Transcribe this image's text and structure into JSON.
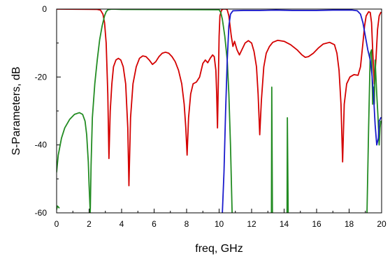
{
  "chart_data": {
    "type": "line",
    "xlabel": "freq, GHz",
    "ylabel": "S-Parameters, dB",
    "xlim": [
      0,
      20
    ],
    "ylim": [
      -60,
      0
    ],
    "x_ticks": [
      0,
      2,
      4,
      6,
      8,
      10,
      12,
      14,
      16,
      18,
      20
    ],
    "y_ticks": [
      0,
      -20,
      -40,
      -60
    ],
    "x_tick_labels": [
      "0",
      "2",
      "4",
      "6",
      "8",
      "10",
      "12",
      "14",
      "16",
      "18",
      "20"
    ],
    "y_tick_labels": [
      "0",
      "-20",
      "-40",
      "-60"
    ],
    "grid": false,
    "series": [
      {
        "color": "#d40000",
        "segments": [
          [
            [
              0,
              0
            ],
            [
              2.5,
              -0.1
            ],
            [
              2.7,
              -0.3
            ],
            [
              2.85,
              -1.5
            ],
            [
              2.95,
              -4
            ],
            [
              3.05,
              -10
            ],
            [
              3.15,
              -25
            ],
            [
              3.22,
              -44
            ],
            [
              3.3,
              -30
            ],
            [
              3.4,
              -22
            ],
            [
              3.5,
              -17
            ],
            [
              3.65,
              -15
            ],
            [
              3.8,
              -14.5
            ],
            [
              3.95,
              -15
            ],
            [
              4.1,
              -17
            ],
            [
              4.25,
              -22
            ],
            [
              4.38,
              -35
            ],
            [
              4.45,
              -52
            ],
            [
              4.55,
              -32
            ],
            [
              4.7,
              -22
            ],
            [
              4.9,
              -17
            ],
            [
              5.1,
              -14.5
            ],
            [
              5.3,
              -13.8
            ],
            [
              5.5,
              -14
            ],
            [
              5.7,
              -15
            ],
            [
              5.9,
              -16.3
            ],
            [
              6.1,
              -15.5
            ],
            [
              6.3,
              -14
            ],
            [
              6.5,
              -13
            ],
            [
              6.7,
              -12.7
            ],
            [
              6.9,
              -13
            ],
            [
              7.1,
              -14
            ],
            [
              7.3,
              -15.5
            ],
            [
              7.5,
              -18
            ],
            [
              7.7,
              -22
            ],
            [
              7.85,
              -28
            ],
            [
              7.95,
              -35
            ],
            [
              8.03,
              -43
            ],
            [
              8.12,
              -32
            ],
            [
              8.25,
              -25
            ],
            [
              8.4,
              -22
            ],
            [
              8.6,
              -21.5
            ],
            [
              8.8,
              -20
            ],
            [
              9.0,
              -16
            ],
            [
              9.15,
              -15
            ],
            [
              9.3,
              -15.8
            ],
            [
              9.45,
              -14.5
            ],
            [
              9.6,
              -13.5
            ],
            [
              9.7,
              -14
            ],
            [
              9.8,
              -18
            ],
            [
              9.85,
              -25
            ],
            [
              9.9,
              -35
            ],
            [
              9.95,
              -22
            ],
            [
              10.0,
              -8
            ],
            [
              10.05,
              -2
            ],
            [
              10.15,
              -0.3
            ],
            [
              10.25,
              0
            ],
            [
              10.4,
              0
            ],
            [
              10.5,
              -0.2
            ],
            [
              10.6,
              -2
            ],
            [
              10.75,
              -8
            ],
            [
              10.85,
              -11
            ],
            [
              10.95,
              -9.5
            ],
            [
              11.1,
              -12
            ],
            [
              11.25,
              -13.5
            ],
            [
              11.4,
              -12
            ],
            [
              11.6,
              -10
            ],
            [
              11.8,
              -9.3
            ],
            [
              12.0,
              -10
            ],
            [
              12.15,
              -12.5
            ],
            [
              12.3,
              -17
            ],
            [
              12.4,
              -25
            ],
            [
              12.5,
              -37
            ],
            [
              12.6,
              -27
            ],
            [
              12.75,
              -17
            ],
            [
              12.9,
              -13
            ],
            [
              13.1,
              -11
            ],
            [
              13.3,
              -9.8
            ],
            [
              13.6,
              -9.2
            ],
            [
              14.0,
              -9.5
            ],
            [
              14.4,
              -10.5
            ],
            [
              14.8,
              -12
            ],
            [
              15.1,
              -13.5
            ],
            [
              15.3,
              -14.2
            ],
            [
              15.5,
              -14
            ],
            [
              15.8,
              -13
            ],
            [
              16.1,
              -11.5
            ],
            [
              16.4,
              -10.3
            ],
            [
              16.8,
              -9.8
            ],
            [
              17.1,
              -10.5
            ],
            [
              17.25,
              -13
            ],
            [
              17.38,
              -18
            ],
            [
              17.5,
              -28
            ],
            [
              17.6,
              -45
            ],
            [
              17.7,
              -28
            ],
            [
              17.85,
              -22
            ],
            [
              18.05,
              -20
            ],
            [
              18.3,
              -19.3
            ],
            [
              18.55,
              -19.5
            ],
            [
              18.7,
              -17
            ],
            [
              18.85,
              -10
            ],
            [
              18.95,
              -5
            ],
            [
              19.05,
              -2
            ],
            [
              19.2,
              -0.8
            ],
            [
              19.3,
              -1
            ],
            [
              19.38,
              -4
            ],
            [
              19.45,
              -12
            ],
            [
              19.55,
              -22
            ],
            [
              19.65,
              -15
            ],
            [
              19.75,
              -6
            ],
            [
              19.85,
              -2
            ],
            [
              19.95,
              -1
            ]
          ]
        ]
      },
      {
        "color": "#238c23",
        "segments": [
          [
            [
              0,
              -59
            ],
            [
              0.05,
              -58
            ],
            [
              0.15,
              -58.5
            ]
          ],
          [
            [
              0,
              -48
            ],
            [
              0.1,
              -43
            ],
            [
              0.3,
              -38
            ],
            [
              0.5,
              -35
            ],
            [
              0.8,
              -32.5
            ],
            [
              1.1,
              -31
            ],
            [
              1.4,
              -30.5
            ],
            [
              1.6,
              -31
            ],
            [
              1.75,
              -33
            ],
            [
              1.85,
              -37
            ],
            [
              1.95,
              -45
            ],
            [
              2.0,
              -52
            ],
            [
              2.07,
              -60
            ]
          ],
          [
            [
              2.07,
              -60
            ],
            [
              2.12,
              -46
            ],
            [
              2.2,
              -32
            ],
            [
              2.35,
              -22
            ],
            [
              2.5,
              -15
            ],
            [
              2.65,
              -9
            ],
            [
              2.8,
              -5
            ],
            [
              2.95,
              -2
            ],
            [
              3.05,
              -0.8
            ],
            [
              3.15,
              -0.2
            ],
            [
              3.4,
              0
            ],
            [
              4,
              -0.1
            ],
            [
              10.0,
              -0.2
            ]
          ],
          [
            [
              10.0,
              -0.2
            ],
            [
              10.1,
              -1
            ],
            [
              10.2,
              -3
            ],
            [
              10.35,
              -8
            ],
            [
              10.5,
              -15
            ],
            [
              10.6,
              -25
            ],
            [
              10.7,
              -40
            ],
            [
              10.8,
              -60
            ]
          ],
          [
            [
              13.22,
              -60
            ],
            [
              13.24,
              -23
            ],
            [
              13.28,
              -60
            ]
          ],
          [
            [
              14.18,
              -60
            ],
            [
              14.2,
              -32
            ],
            [
              14.25,
              -60
            ]
          ],
          [
            [
              19.1,
              -60
            ],
            [
              19.2,
              -35
            ],
            [
              19.3,
              -13
            ],
            [
              19.38,
              -12
            ],
            [
              19.45,
              -28
            ],
            [
              19.5,
              -23
            ],
            [
              19.55,
              -28
            ],
            [
              19.6,
              -15
            ],
            [
              19.7,
              -25
            ],
            [
              19.78,
              -32
            ],
            [
              19.85,
              -40
            ],
            [
              19.9,
              -35
            ],
            [
              19.95,
              -33
            ],
            [
              20.0,
              -33
            ]
          ]
        ]
      },
      {
        "color": "#1a1acc",
        "segments": [
          [
            [
              10.2,
              -60
            ],
            [
              10.3,
              -48
            ],
            [
              10.4,
              -30
            ],
            [
              10.5,
              -15
            ],
            [
              10.6,
              -5
            ],
            [
              10.7,
              -1.5
            ],
            [
              10.85,
              -0.5
            ],
            [
              11.5,
              -0.4
            ],
            [
              12.5,
              -0.4
            ],
            [
              13.5,
              -0.3
            ],
            [
              14.5,
              -0.4
            ],
            [
              16,
              -0.4
            ],
            [
              17,
              -0.3
            ],
            [
              18.2,
              -0.3
            ],
            [
              18.5,
              -0.5
            ],
            [
              18.7,
              -1.5
            ],
            [
              18.85,
              -4
            ],
            [
              19.0,
              -8
            ],
            [
              19.15,
              -12
            ],
            [
              19.3,
              -15
            ],
            [
              19.4,
              -19
            ],
            [
              19.5,
              -25
            ],
            [
              19.6,
              -34
            ],
            [
              19.7,
              -40
            ],
            [
              19.8,
              -38
            ],
            [
              19.85,
              -33
            ],
            [
              19.95,
              -32
            ]
          ]
        ]
      }
    ]
  }
}
